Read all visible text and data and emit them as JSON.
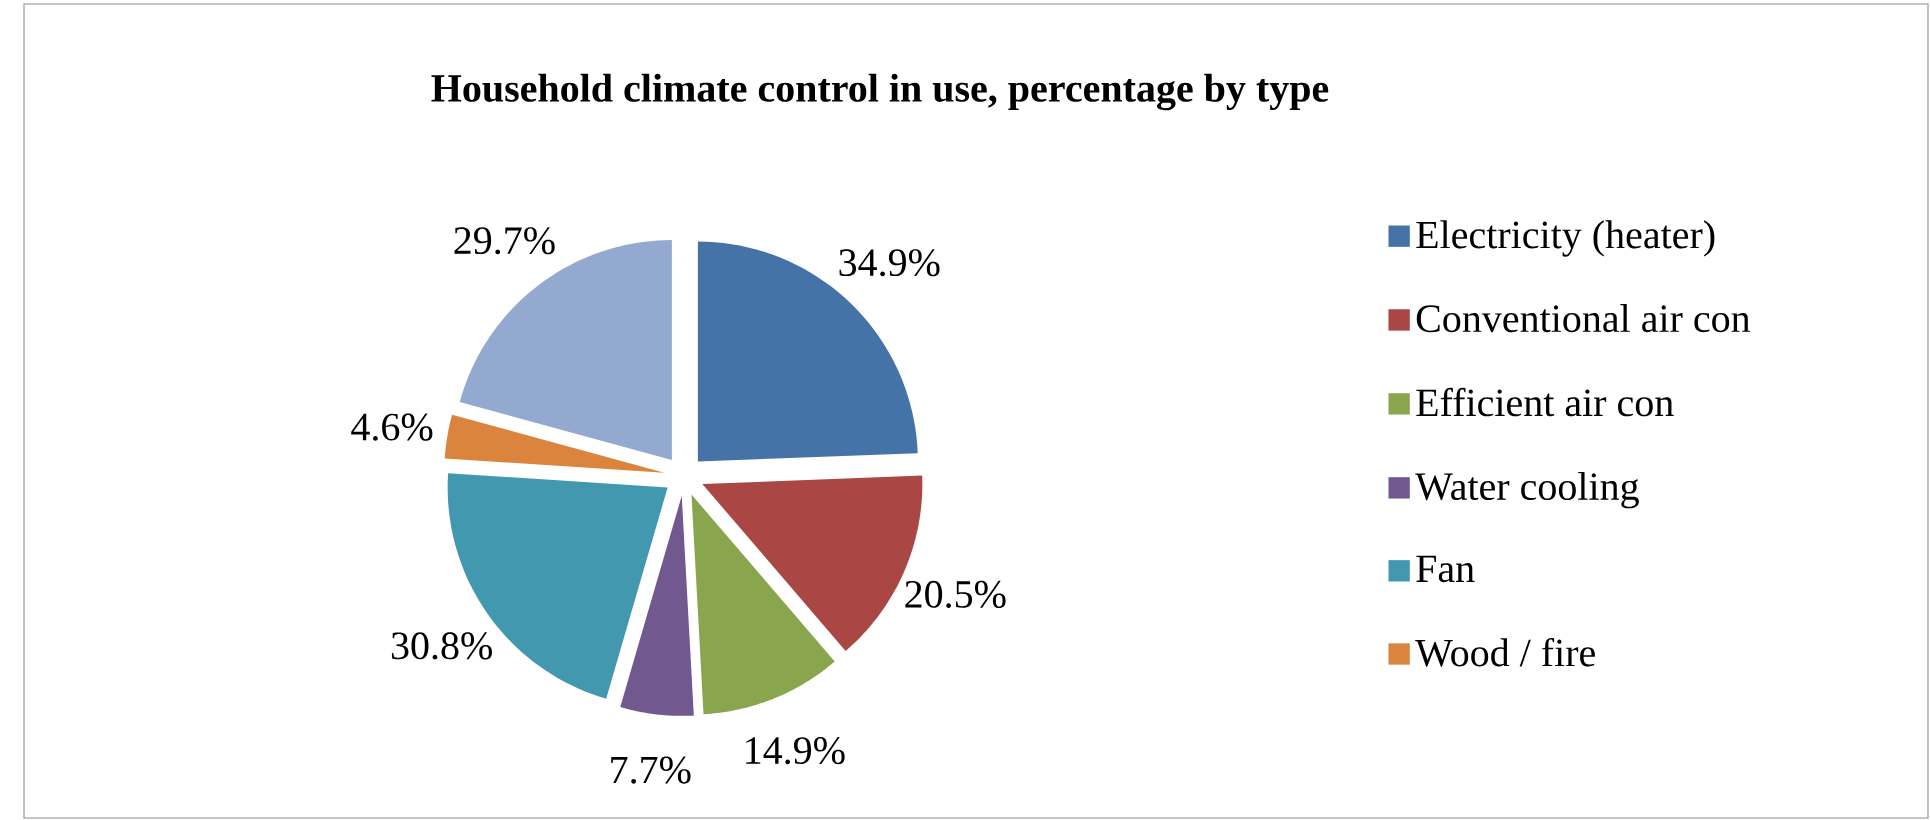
{
  "chart_data": {
    "type": "pie",
    "title": "Household climate control in use, percentage by type",
    "categories": [
      "Electricity (heater)",
      "Conventional air con",
      "Efficient air con",
      "Water cooling",
      "Fan",
      "Wood / fire",
      null
    ],
    "values": [
      34.9,
      20.5,
      14.9,
      7.7,
      30.8,
      4.6,
      29.7
    ],
    "value_labels": [
      "34.9%",
      "20.5%",
      "14.9%",
      "7.7%",
      "30.8%",
      "4.6%",
      "29.7%"
    ],
    "colors": [
      "#4572a7",
      "#aa4643",
      "#89a54e",
      "#71588f",
      "#4198af",
      "#db843d",
      "#93a9cf"
    ],
    "legend": "right"
  }
}
